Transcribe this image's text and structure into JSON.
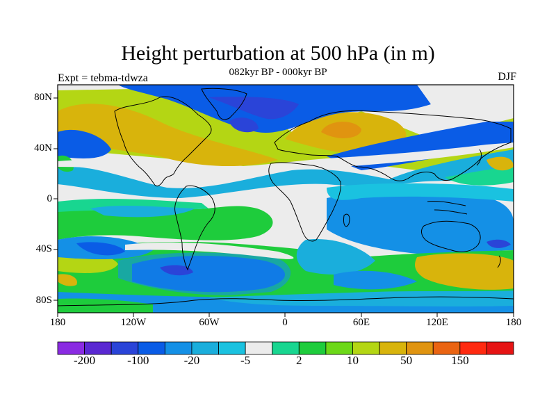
{
  "title": "Height perturbation at 500 hPa (in m)",
  "subtitle": "082kyr BP - 000kyr BP",
  "left_label": "Expt = tebma-tdwza",
  "right_label": "DJF",
  "lat_labels": [
    "80N",
    "40N",
    "0",
    "40S",
    "80S"
  ],
  "lon_labels": [
    "180",
    "120W",
    "60W",
    "0",
    "60E",
    "120E",
    "180"
  ],
  "colorbar": {
    "labels": [
      "-200",
      "-100",
      "-20",
      "-5",
      "2",
      "10",
      "50",
      "150"
    ],
    "colors": [
      "#8a2be2",
      "#5a28d2",
      "#2a44d8",
      "#0a5ce6",
      "#1490e6",
      "#1aaedc",
      "#1ac2e0",
      "#ececec",
      "#18d690",
      "#1ecc3c",
      "#6cd818",
      "#b4d614",
      "#d8b40c",
      "#e09410",
      "#ea6412",
      "#ff2a10",
      "#e61414"
    ]
  },
  "palette": {
    "land_outline": "#000000",
    "neutral": "#ececec",
    "deep_blue": "#2a44d8",
    "blue": "#0a5ce6",
    "mid_blue": "#1490e6",
    "light_blue": "#1ac2e0",
    "teal_green": "#18d690",
    "green": "#1ecc3c",
    "yellow_green": "#b4d614",
    "olive": "#d8b40c",
    "orange": "#e09410"
  }
}
